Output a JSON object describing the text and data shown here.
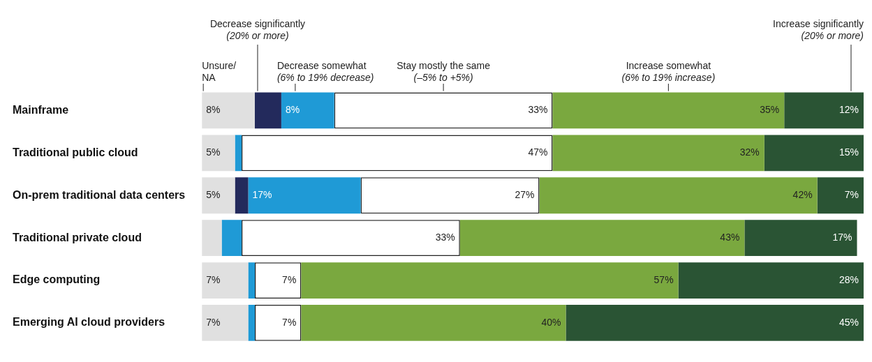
{
  "chart_data": {
    "type": "bar",
    "orientation": "horizontal",
    "stacked": true,
    "legend": "top",
    "xlim": [
      0,
      100
    ],
    "categories": [
      "Mainframe",
      "Traditional public cloud",
      "On-prem traditional data centers",
      "Traditional private cloud",
      "Edge computing",
      "Emerging AI cloud providers"
    ],
    "series": [
      {
        "name": "Unsure/\nNA",
        "color": "#e0e0e0",
        "values": [
          8,
          5,
          5,
          3,
          7,
          7
        ],
        "value_labels": [
          "8%",
          "5%",
          "5%",
          null,
          "7%",
          "7%"
        ]
      },
      {
        "name": "Decrease significantly\n(20% or more)",
        "color": "#232a5c",
        "values": [
          4,
          0,
          2,
          0,
          0,
          0
        ],
        "value_labels": [
          null,
          null,
          null,
          null,
          null,
          null
        ]
      },
      {
        "name": "Decrease somewhat\n(6% to 19% decrease)",
        "color": "#1f9ad6",
        "values": [
          8,
          1,
          17,
          3,
          1,
          1
        ],
        "value_labels": [
          "8%",
          null,
          "17%",
          null,
          null,
          null
        ]
      },
      {
        "name": "Stay mostly the same\n(–5% to +5%)",
        "color": "#ffffff",
        "values": [
          33,
          47,
          27,
          33,
          7,
          7
        ],
        "value_labels": [
          "33%",
          "47%",
          "27%",
          "33%",
          "7%",
          "7%"
        ]
      },
      {
        "name": "Increase somewhat\n(6% to 19% increase)",
        "color": "#7aa83f",
        "values": [
          35,
          32,
          42,
          43,
          57,
          40
        ],
        "value_labels": [
          "35%",
          "32%",
          "42%",
          "43%",
          "57%",
          "40%"
        ]
      },
      {
        "name": "Increase significantly\n(20% or more)",
        "color": "#2a5434",
        "values": [
          12,
          15,
          7,
          17,
          28,
          45
        ],
        "value_labels": [
          "12%",
          "15%",
          "7%",
          "17%",
          "28%",
          "45%"
        ]
      }
    ]
  }
}
